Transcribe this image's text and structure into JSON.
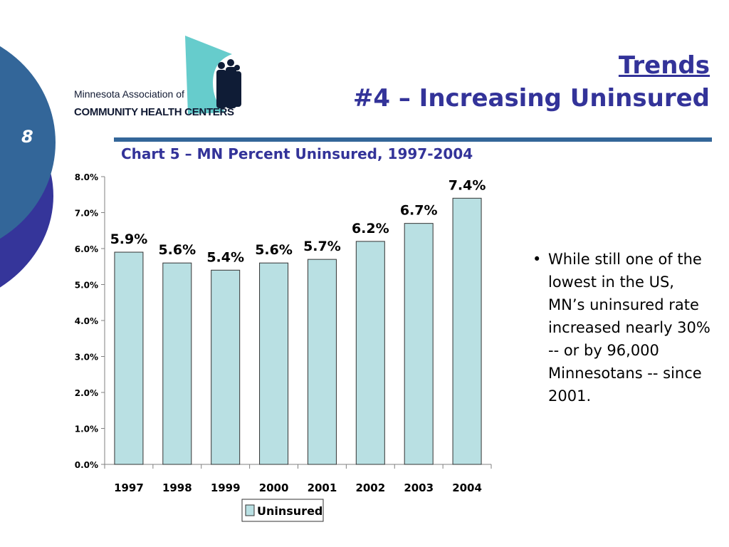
{
  "slide": {
    "number": "8",
    "title_line1": "Trends",
    "title_line2": "#4 – Increasing Uninsured"
  },
  "logo": {
    "line1": "Minnesota Association of",
    "line2": "COMMUNITY HEALTH CENTERS"
  },
  "colors": {
    "primary_blue": "#336699",
    "title_purple": "#333399",
    "bar_fill": "#b9e0e3",
    "logo_teal": "#66cccc"
  },
  "bullet": {
    "text": "While still one of the lowest in the US, MN’s uninsured rate increased nearly 30%  -- or by 96,000 Minnesotans -- since 2001."
  },
  "chart_data": {
    "type": "bar",
    "title": "Chart 5 – MN Percent Uninsured, 1997-2004",
    "categories": [
      "1997",
      "1998",
      "1999",
      "2000",
      "2001",
      "2002",
      "2003",
      "2004"
    ],
    "series": [
      {
        "name": "Uninsured",
        "values": [
          5.9,
          5.6,
          5.4,
          5.6,
          5.7,
          6.2,
          6.7,
          7.4
        ]
      }
    ],
    "data_labels": [
      "5.9%",
      "5.6%",
      "5.4%",
      "5.6%",
      "5.7%",
      "6.2%",
      "6.7%",
      "7.4%"
    ],
    "yticks": [
      "0.0%",
      "1.0%",
      "2.0%",
      "3.0%",
      "4.0%",
      "5.0%",
      "6.0%",
      "7.0%",
      "8.0%"
    ],
    "ylim": [
      0,
      8
    ],
    "grid": false,
    "legend": "bottom",
    "xlabel": "",
    "ylabel": ""
  }
}
